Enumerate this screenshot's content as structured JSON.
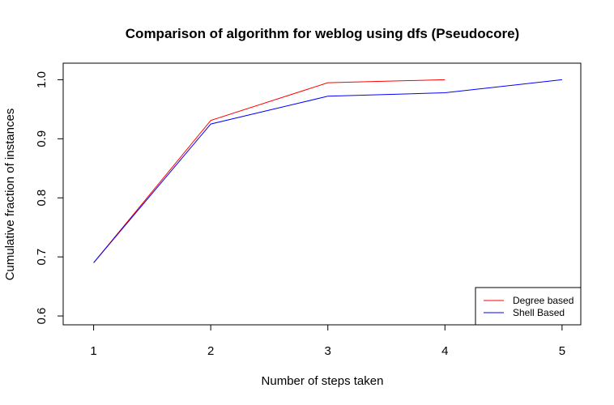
{
  "chart_data": {
    "type": "line",
    "title": "Comparison of algorithm for weblog using dfs (Pseudocore)",
    "xlabel": "Number of steps taken",
    "ylabel": "Cumulative fraction of instances",
    "xlim": [
      0.74,
      5.16
    ],
    "ylim": [
      0.585,
      1.028
    ],
    "x_ticks": [
      "1",
      "2",
      "3",
      "4",
      "5"
    ],
    "y_ticks": [
      "0.6",
      "0.7",
      "0.8",
      "0.9",
      "1.0"
    ],
    "grid": false,
    "legend_position": "bottom-right",
    "series": [
      {
        "name": "Degree based",
        "color": "#ff0000",
        "x": [
          1,
          2,
          3,
          4
        ],
        "y": [
          0.69,
          0.931,
          0.995,
          1.0
        ]
      },
      {
        "name": "Shell Based",
        "color": "#0000ff",
        "x": [
          1,
          2,
          3,
          4,
          5
        ],
        "y": [
          0.69,
          0.925,
          0.972,
          0.978,
          1.0
        ]
      }
    ]
  }
}
